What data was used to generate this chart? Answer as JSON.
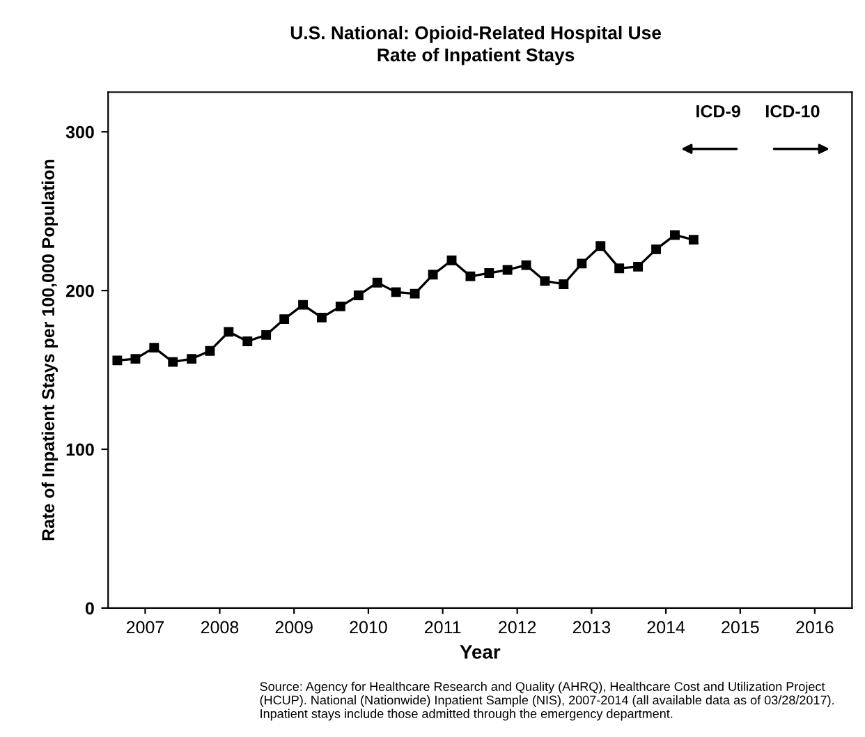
{
  "chart_data": {
    "type": "line",
    "title": "U.S. National: Opioid-Related Hospital Use",
    "subtitle": "Rate of Inpatient Stays",
    "xlabel": "Year",
    "ylabel": "Rate of Inpatient Stays per 100,000 Population",
    "x": [
      "2007-02-15",
      "2007-05-15",
      "2007-08-15",
      "2007-11-15",
      "2008-02-15",
      "2008-05-15",
      "2008-08-15",
      "2008-11-15",
      "2009-02-15",
      "2009-05-15",
      "2009-08-15",
      "2009-11-15",
      "2010-02-15",
      "2010-05-15",
      "2010-08-15",
      "2010-11-15",
      "2011-02-15",
      "2011-05-15",
      "2011-08-15",
      "2011-11-15",
      "2012-02-15",
      "2012-05-15",
      "2012-08-15",
      "2012-11-15",
      "2013-02-15",
      "2013-05-15",
      "2013-08-15",
      "2013-11-15",
      "2014-02-15",
      "2014-05-15",
      "2014-08-15",
      "2014-11-15"
    ],
    "series": [
      {
        "color": "#000000",
        "values": [
          156,
          157,
          164,
          155,
          157,
          162,
          174,
          168,
          172,
          182,
          191,
          183,
          190,
          197,
          205,
          199,
          198,
          210,
          219,
          209,
          211,
          213,
          216,
          206,
          204,
          217,
          228,
          214,
          215,
          226,
          235,
          232
        ]
      }
    ],
    "marker": "square",
    "line_style": "solid",
    "grid": false,
    "legend": false,
    "xlim": [
      "2007-01-01",
      "2017-01-01"
    ],
    "xticks": [
      {
        "value": "2007-07-02",
        "label": "2007"
      },
      {
        "value": "2008-07-02",
        "label": "2008"
      },
      {
        "value": "2009-07-02",
        "label": "2009"
      },
      {
        "value": "2010-07-02",
        "label": "2010"
      },
      {
        "value": "2011-07-02",
        "label": "2011"
      },
      {
        "value": "2012-07-02",
        "label": "2012"
      },
      {
        "value": "2013-07-02",
        "label": "2013"
      },
      {
        "value": "2014-07-02",
        "label": "2014"
      },
      {
        "value": "2015-07-02",
        "label": "2015"
      },
      {
        "value": "2016-07-02",
        "label": "2016"
      }
    ],
    "ylim": [
      0,
      325
    ],
    "yticks": [
      0,
      100,
      200,
      300
    ],
    "annotations": [
      "ICD-9",
      "ICD-10",
      "Source: Agency for Healthcare Research and Quality (AHRQ), Healthcare Cost and Utilization Project (HCUP). National (Nationwide) Inpatient Sample (NIS), 2007-2014 (all available data as of 03/28/2017). Inpatient stays include those admitted through the emergency department."
    ]
  }
}
